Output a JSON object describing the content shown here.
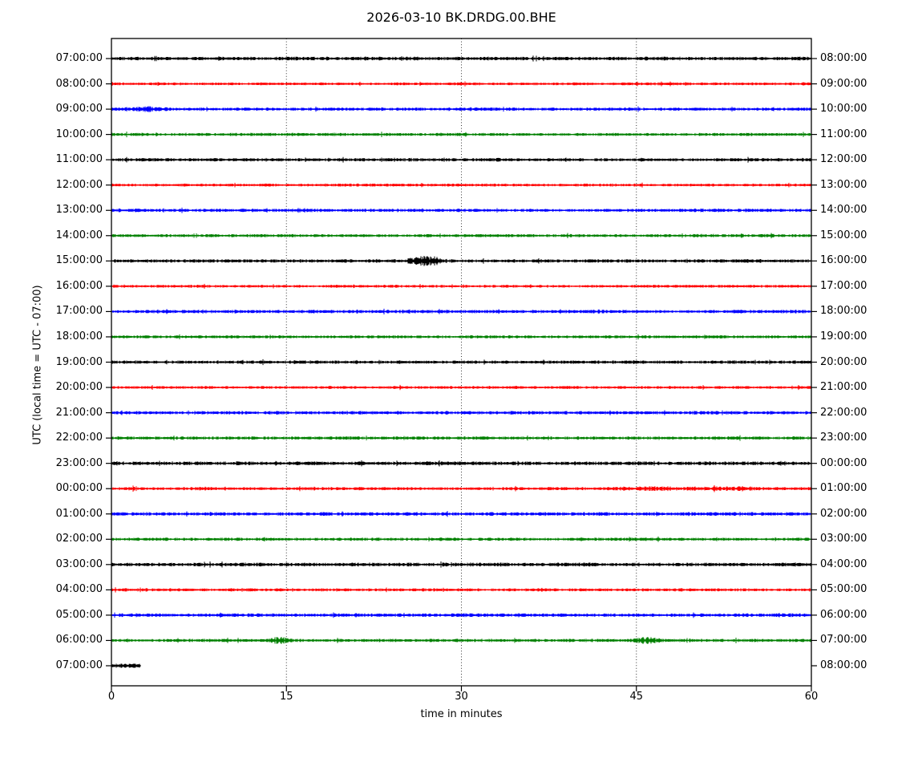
{
  "chart_data": {
    "type": "line",
    "title": "2026-03-10 BK.DRDG.00.BHE",
    "xlabel": "time in minutes",
    "ylabel": "UTC (local time = UTC - 07:00)",
    "xlim": [
      0,
      60
    ],
    "xticks": [
      0,
      15,
      30,
      45,
      60
    ],
    "grid": {
      "vertical_dotted_minutes": [
        15,
        30,
        45
      ]
    },
    "legend": "none",
    "description": "Helicorder day plot, 25 one-hour trace lines, color cycle black/red/blue/green, left axis UTC start time of line, right axis end time of line",
    "color_cycle": [
      "#000000",
      "#ff0000",
      "#0000ff",
      "#008000"
    ],
    "minutes_per_line": 60,
    "rows": [
      {
        "left_label": "07:00:00",
        "right_label": "08:00:00",
        "color": "#000000",
        "start": 0,
        "end": 60,
        "noise": 1.05,
        "events": []
      },
      {
        "left_label": "08:00:00",
        "right_label": "09:00:00",
        "color": "#ff0000",
        "start": 0,
        "end": 60,
        "noise": 0.85,
        "events": []
      },
      {
        "left_label": "09:00:00",
        "right_label": "10:00:00",
        "color": "#0000ff",
        "start": 0,
        "end": 60,
        "noise": 0.95,
        "events": [
          {
            "t": 3.0,
            "amp": 1.0,
            "dur": 3.0
          }
        ]
      },
      {
        "left_label": "10:00:00",
        "right_label": "11:00:00",
        "color": "#008000",
        "start": 0,
        "end": 60,
        "noise": 0.9,
        "events": []
      },
      {
        "left_label": "11:00:00",
        "right_label": "12:00:00",
        "color": "#000000",
        "start": 0,
        "end": 60,
        "noise": 1.0,
        "events": []
      },
      {
        "left_label": "12:00:00",
        "right_label": "13:00:00",
        "color": "#ff0000",
        "start": 0,
        "end": 60,
        "noise": 0.85,
        "events": []
      },
      {
        "left_label": "13:00:00",
        "right_label": "14:00:00",
        "color": "#0000ff",
        "start": 0,
        "end": 60,
        "noise": 0.95,
        "events": [
          {
            "t": 16.2,
            "amp": 0.9,
            "dur": 1.6
          }
        ]
      },
      {
        "left_label": "14:00:00",
        "right_label": "15:00:00",
        "color": "#008000",
        "start": 0,
        "end": 60,
        "noise": 0.9,
        "events": []
      },
      {
        "left_label": "15:00:00",
        "right_label": "16:00:00",
        "color": "#000000",
        "start": 0,
        "end": 60,
        "noise": 1.0,
        "events": [
          {
            "t": 27.0,
            "amp": 2.4,
            "dur": 2.4
          }
        ]
      },
      {
        "left_label": "16:00:00",
        "right_label": "17:00:00",
        "color": "#ff0000",
        "start": 0,
        "end": 60,
        "noise": 0.85,
        "events": []
      },
      {
        "left_label": "17:00:00",
        "right_label": "18:00:00",
        "color": "#0000ff",
        "start": 0,
        "end": 60,
        "noise": 1.0,
        "events": []
      },
      {
        "left_label": "18:00:00",
        "right_label": "19:00:00",
        "color": "#008000",
        "start": 0,
        "end": 60,
        "noise": 0.9,
        "events": []
      },
      {
        "left_label": "19:00:00",
        "right_label": "20:00:00",
        "color": "#000000",
        "start": 0,
        "end": 60,
        "noise": 1.0,
        "events": []
      },
      {
        "left_label": "20:00:00",
        "right_label": "21:00:00",
        "color": "#ff0000",
        "start": 0,
        "end": 60,
        "noise": 0.85,
        "events": []
      },
      {
        "left_label": "21:00:00",
        "right_label": "22:00:00",
        "color": "#0000ff",
        "start": 0,
        "end": 60,
        "noise": 1.0,
        "events": []
      },
      {
        "left_label": "22:00:00",
        "right_label": "23:00:00",
        "color": "#008000",
        "start": 0,
        "end": 60,
        "noise": 0.95,
        "events": []
      },
      {
        "left_label": "23:00:00",
        "right_label": "00:00:00",
        "color": "#000000",
        "start": 0,
        "end": 60,
        "noise": 1.1,
        "events": []
      },
      {
        "left_label": "00:00:00",
        "right_label": "01:00:00",
        "color": "#ff0000",
        "start": 0,
        "end": 60,
        "noise": 0.95,
        "events": [
          {
            "t": 46.0,
            "amp": 0.5,
            "dur": 6.0
          },
          {
            "t": 53.0,
            "amp": 0.35,
            "dur": 6.0
          }
        ]
      },
      {
        "left_label": "01:00:00",
        "right_label": "02:00:00",
        "color": "#0000ff",
        "start": 0,
        "end": 60,
        "noise": 1.05,
        "events": []
      },
      {
        "left_label": "02:00:00",
        "right_label": "03:00:00",
        "color": "#008000",
        "start": 0,
        "end": 60,
        "noise": 0.95,
        "events": []
      },
      {
        "left_label": "03:00:00",
        "right_label": "04:00:00",
        "color": "#000000",
        "start": 0,
        "end": 60,
        "noise": 1.1,
        "events": []
      },
      {
        "left_label": "04:00:00",
        "right_label": "05:00:00",
        "color": "#ff0000",
        "start": 0,
        "end": 60,
        "noise": 0.9,
        "events": []
      },
      {
        "left_label": "05:00:00",
        "right_label": "06:00:00",
        "color": "#0000ff",
        "start": 0,
        "end": 60,
        "noise": 1.05,
        "events": []
      },
      {
        "left_label": "06:00:00",
        "right_label": "07:00:00",
        "color": "#008000",
        "start": 0,
        "end": 60,
        "noise": 0.95,
        "events": [
          {
            "t": 14.4,
            "amp": 1.3,
            "dur": 1.6
          },
          {
            "t": 46.0,
            "amp": 1.3,
            "dur": 2.0
          }
        ]
      },
      {
        "left_label": "07:00:00",
        "right_label": "08:00:00",
        "color": "#000000",
        "start": 0,
        "end": 2.5,
        "noise": 1.3,
        "events": []
      }
    ]
  }
}
